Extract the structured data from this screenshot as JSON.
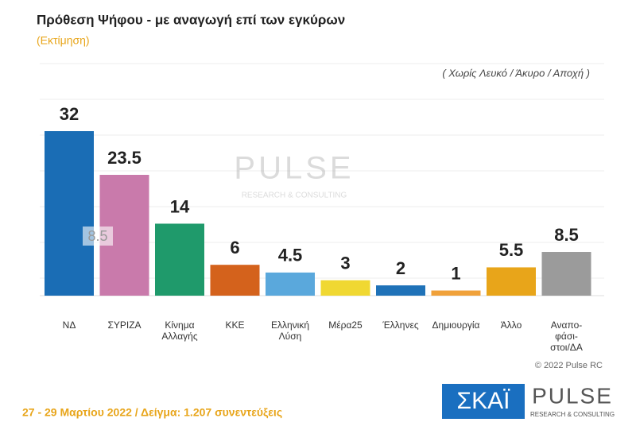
{
  "chart_data": {
    "type": "bar",
    "title": "Πρόθεση Ψήφου - με αναγωγή επί των εγκύρων",
    "subtitle": "(Εκτίμηση)",
    "note": "( Χωρίς Λευκό / Άκυρο / Αποχή )",
    "categories": [
      "ΝΔ",
      "ΣΥΡΙΖΑ",
      "Κίνημα\nΑλλαγής",
      "ΚΚΕ",
      "Ελληνική\nΛύση",
      "Μέρα25",
      "Έλληνες",
      "Δημιουργία",
      "Άλλο",
      "Αναπο-\nφάσι-\nστοι/ΔΑ"
    ],
    "values": [
      32,
      23.5,
      14,
      6,
      4.5,
      3,
      2,
      1,
      5.5,
      8.5
    ],
    "colors": [
      "#1a6db5",
      "#c97aab",
      "#1f9a6b",
      "#d4621c",
      "#5aa8dc",
      "#f0d832",
      "#1f72b8",
      "#f0a13a",
      "#e8a51a",
      "#9b9b9b"
    ],
    "annotation": "8.5",
    "footer": "27 - 29 Μαρτίου 2022 / Δείγμα: 1.207 συνεντεύξεις",
    "copyright": "© 2022 Pulse RC",
    "logos": {
      "channel": "ΣΚΑΪ",
      "brand": "PULSE",
      "brand_tagline": "RESEARCH & CONSULTING"
    }
  }
}
